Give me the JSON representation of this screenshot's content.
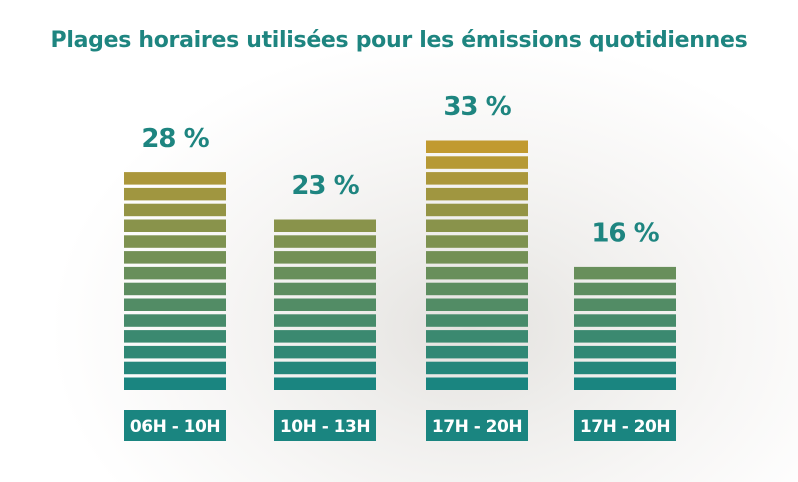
{
  "chart_data": {
    "type": "bar",
    "title": "Plages horaires utilisées pour les émissions quotidiennes",
    "categories": [
      "06h - 10h",
      "10h - 13h",
      "17h - 20h",
      "17h - 20h"
    ],
    "values": [
      28,
      23,
      33,
      16
    ],
    "value_labels": [
      "28 %",
      "23 %",
      "33 %",
      "16 %"
    ],
    "unit": "%",
    "ylim": [
      0,
      33
    ],
    "grid": false,
    "colors": {
      "bottom": "#1a8580",
      "top": "#c19a30",
      "label_bg": "#1a8580",
      "text": "#1e8580"
    }
  }
}
